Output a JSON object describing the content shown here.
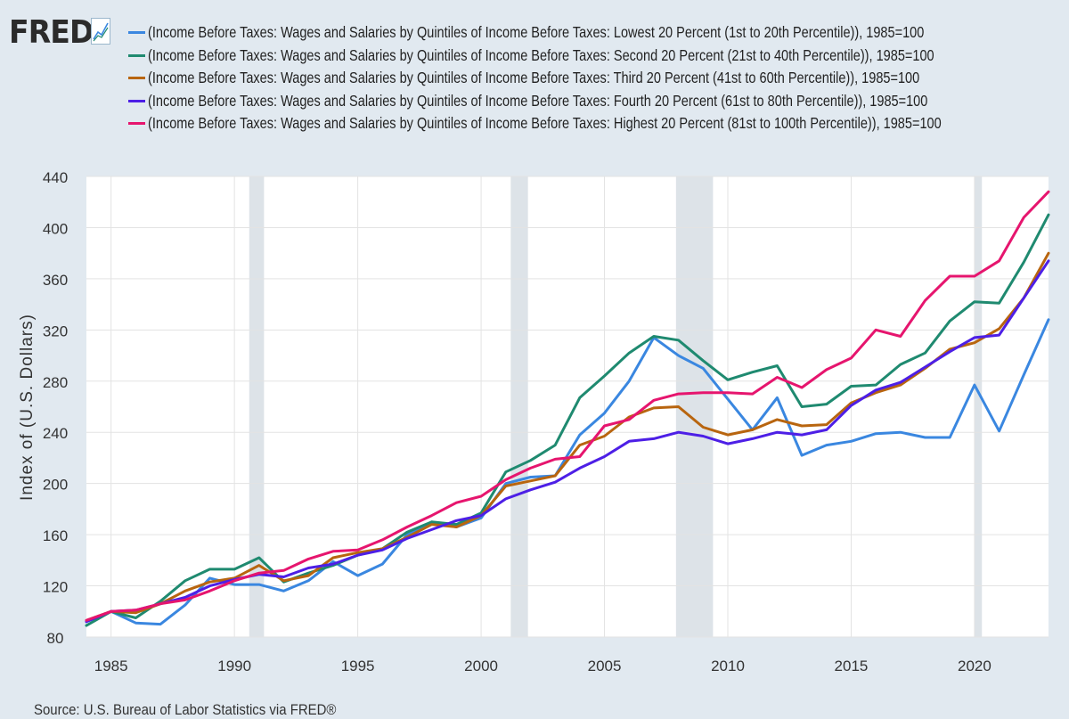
{
  "logo": {
    "text": "FRED",
    "icon": "fred-graph-icon"
  },
  "chart_data": {
    "type": "line",
    "ylabel": "Index of (U.S. Dollars)",
    "xlabel": "",
    "xlim": [
      1984,
      2023
    ],
    "ylim": [
      80,
      440
    ],
    "grid": true,
    "legend_position": "top",
    "yticks": [
      80,
      120,
      160,
      200,
      240,
      280,
      320,
      360,
      400,
      440
    ],
    "xticks": [
      1985,
      1990,
      1995,
      2000,
      2005,
      2010,
      2015,
      2020
    ],
    "recessions": [
      [
        1990.6,
        1991.2
      ],
      [
        2001.2,
        2001.9
      ],
      [
        2007.9,
        2009.4
      ],
      [
        2020.0,
        2020.3
      ]
    ],
    "x": [
      1984,
      1985,
      1986,
      1987,
      1988,
      1989,
      1990,
      1991,
      1992,
      1993,
      1994,
      1995,
      1996,
      1997,
      1998,
      1999,
      2000,
      2001,
      2002,
      2003,
      2004,
      2005,
      2006,
      2007,
      2008,
      2009,
      2010,
      2011,
      2012,
      2013,
      2014,
      2015,
      2016,
      2017,
      2018,
      2019,
      2020,
      2021,
      2022,
      2023
    ],
    "series": [
      {
        "name": "(Income Before Taxes: Wages and Salaries by Quintiles of Income Before Taxes: Lowest 20 Percent (1st to 20th Percentile)), 1985=100",
        "color": "#3a87e0",
        "values": [
          92,
          100,
          91,
          90,
          105,
          126,
          121,
          121,
          116,
          124,
          139,
          128,
          137,
          160,
          170,
          166,
          173,
          200,
          205,
          206,
          238,
          255,
          280,
          314,
          300,
          290,
          266,
          242,
          267,
          222,
          230,
          233,
          239,
          240,
          236,
          236,
          277,
          241,
          285,
          328
        ]
      },
      {
        "name": "(Income Before Taxes: Wages and Salaries by Quintiles of Income Before Taxes: Second 20 Percent (21st to 40th Percentile)), 1985=100",
        "color": "#1f8a70",
        "values": [
          89,
          100,
          95,
          108,
          124,
          133,
          133,
          142,
          123,
          130,
          136,
          144,
          149,
          162,
          170,
          168,
          177,
          209,
          218,
          230,
          267,
          284,
          302,
          315,
          312,
          296,
          281,
          287,
          292,
          260,
          262,
          276,
          277,
          293,
          302,
          327,
          342,
          341,
          373,
          410
        ]
      },
      {
        "name": "(Income Before Taxes: Wages and Salaries by Quintiles of Income Before Taxes: Third 20 Percent (41st to 60th Percentile)), 1985=100",
        "color": "#b8650f",
        "values": [
          93,
          100,
          99,
          106,
          116,
          123,
          126,
          136,
          124,
          128,
          142,
          146,
          149,
          158,
          168,
          166,
          175,
          198,
          202,
          206,
          230,
          237,
          252,
          259,
          260,
          244,
          238,
          242,
          250,
          245,
          246,
          263,
          271,
          277,
          290,
          305,
          310,
          321,
          345,
          380
        ]
      },
      {
        "name": "(Income Before Taxes: Wages and Salaries by Quintiles of Income Before Taxes: Fourth 20 Percent (61st to 80th Percentile)), 1985=100",
        "color": "#4d1fe6",
        "values": [
          92,
          100,
          101,
          106,
          111,
          120,
          125,
          129,
          127,
          134,
          137,
          144,
          148,
          157,
          164,
          171,
          175,
          188,
          195,
          201,
          212,
          221,
          233,
          235,
          240,
          237,
          231,
          235,
          240,
          238,
          242,
          261,
          273,
          279,
          291,
          303,
          314,
          316,
          345,
          374
        ]
      },
      {
        "name": "(Income Before Taxes: Wages and Salaries by Quintiles of Income Before Taxes: Highest 20 Percent (81st to 100th Percentile)), 1985=100",
        "color": "#e6156e",
        "values": [
          93,
          100,
          101,
          106,
          109,
          116,
          124,
          130,
          132,
          141,
          147,
          148,
          156,
          166,
          175,
          185,
          190,
          203,
          212,
          219,
          221,
          245,
          250,
          265,
          270,
          271,
          271,
          270,
          283,
          275,
          289,
          298,
          320,
          315,
          343,
          362,
          362,
          374,
          408,
          428
        ]
      }
    ]
  },
  "source": "Source: U.S. Bureau of Labor Statistics via FRED®"
}
